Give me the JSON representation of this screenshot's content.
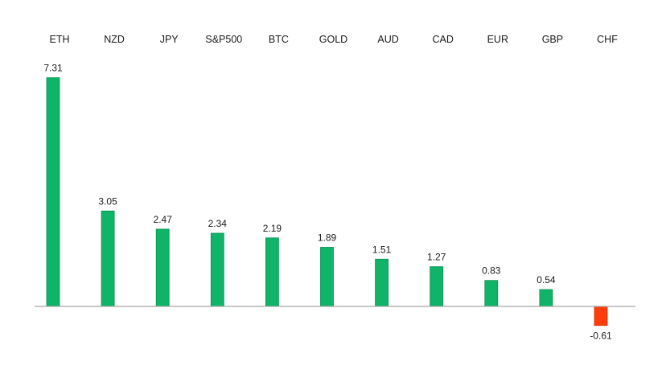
{
  "chart_data": {
    "type": "bar",
    "categories": [
      "ETH",
      "NZD",
      "JPY",
      "S&P500",
      "BTC",
      "GOLD",
      "AUD",
      "CAD",
      "EUR",
      "GBP",
      "CHF"
    ],
    "values": [
      7.31,
      3.05,
      2.47,
      2.34,
      2.19,
      1.89,
      1.51,
      1.27,
      0.83,
      0.54,
      -0.61
    ],
    "value_labels": [
      "7.31",
      "3.05",
      "2.47",
      "2.34",
      "2.19",
      "1.89",
      "1.51",
      "1.27",
      "0.83",
      "0.54",
      "-0.61"
    ],
    "title": "",
    "xlabel": "",
    "ylabel": "",
    "category_label_position": "top",
    "grid": false,
    "legend": "none",
    "colors": {
      "positive": "#0fb468",
      "positive_edge": "#0a8f52",
      "negative": "#ff3d0a",
      "negative_edge": "#d63300",
      "axis": "#a6a6a6"
    }
  }
}
